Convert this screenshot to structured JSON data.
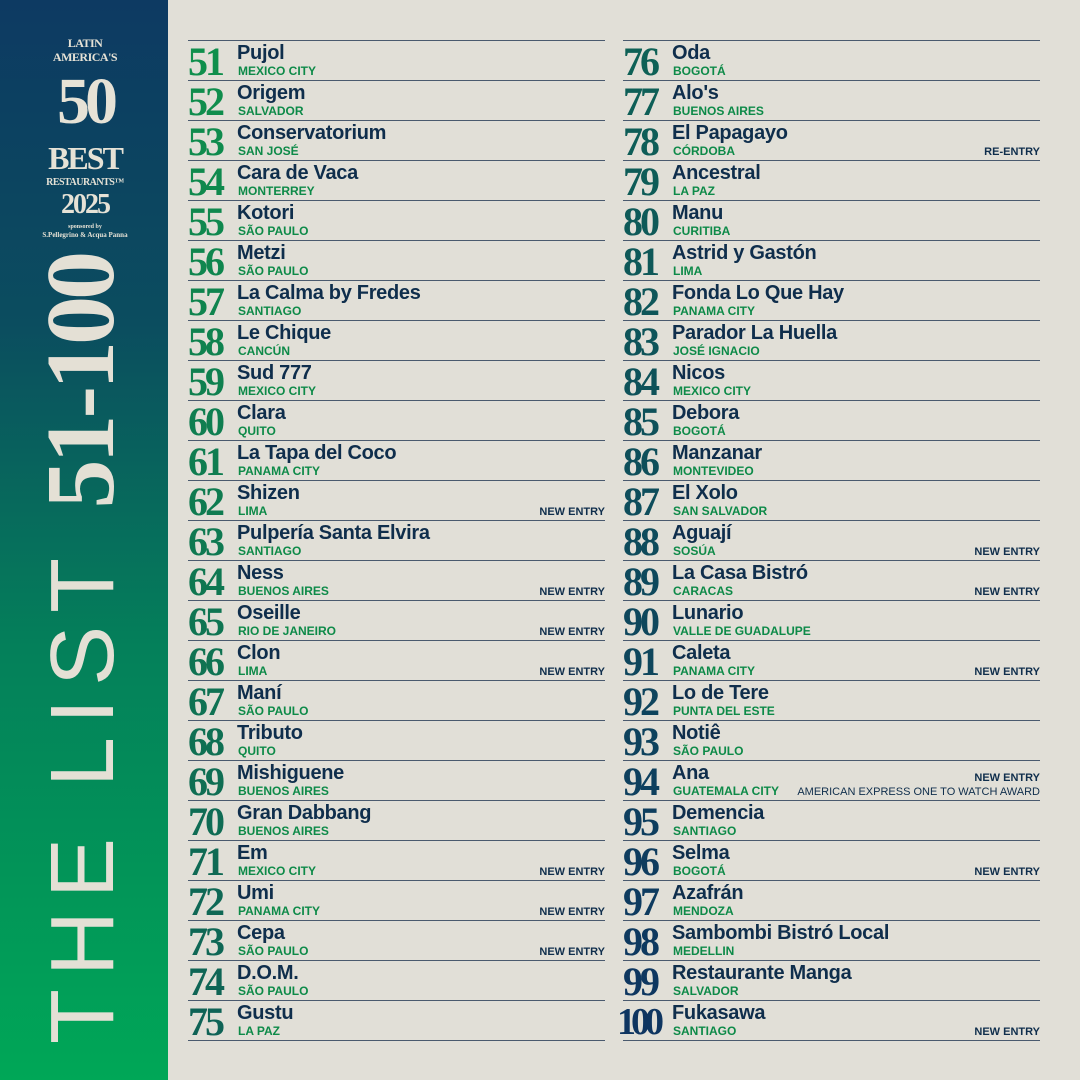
{
  "brand": {
    "line1": "LATIN",
    "line2": "AMERICA'S",
    "number": "50",
    "best": "BEST",
    "restaurants": "RESTAURANTS™",
    "year": "2025",
    "sponsored": "sponsored by",
    "sponsor": "S.Pellegrino & Acqua Panna"
  },
  "heading": {
    "part1": "THE LIST ",
    "part2": "51-100"
  },
  "colors": {
    "number_start": "#0f8f4c",
    "number_end": "#0e3560",
    "name": "#0f2e4c",
    "city": "#0d8a48",
    "background": "#e1dfd7"
  },
  "entries": [
    {
      "rank": "51",
      "name": "Pujol",
      "city": "MEXICO CITY"
    },
    {
      "rank": "52",
      "name": "Origem",
      "city": "SALVADOR"
    },
    {
      "rank": "53",
      "name": "Conservatorium",
      "city": "SAN JOSÉ"
    },
    {
      "rank": "54",
      "name": "Cara de Vaca",
      "city": "MONTERREY"
    },
    {
      "rank": "55",
      "name": "Kotori",
      "city": "SÃO PAULO"
    },
    {
      "rank": "56",
      "name": "Metzi",
      "city": "SÃO PAULO"
    },
    {
      "rank": "57",
      "name": "La Calma by Fredes",
      "city": "SANTIAGO"
    },
    {
      "rank": "58",
      "name": "Le Chique",
      "city": "CANCÚN"
    },
    {
      "rank": "59",
      "name": "Sud 777",
      "city": "MEXICO CITY"
    },
    {
      "rank": "60",
      "name": "Clara",
      "city": "QUITO"
    },
    {
      "rank": "61",
      "name": "La Tapa del Coco",
      "city": "PANAMA CITY"
    },
    {
      "rank": "62",
      "name": "Shizen",
      "city": "LIMA",
      "tag": "NEW ENTRY"
    },
    {
      "rank": "63",
      "name": "Pulpería Santa Elvira",
      "city": "SANTIAGO"
    },
    {
      "rank": "64",
      "name": "Ness",
      "city": "BUENOS AIRES",
      "tag": "NEW ENTRY"
    },
    {
      "rank": "65",
      "name": "Oseille",
      "city": "RIO DE JANEIRO",
      "tag": "NEW ENTRY"
    },
    {
      "rank": "66",
      "name": "Clon",
      "city": "LIMA",
      "tag": "NEW ENTRY"
    },
    {
      "rank": "67",
      "name": "Maní",
      "city": "SÃO PAULO"
    },
    {
      "rank": "68",
      "name": "Tributo",
      "city": "QUITO"
    },
    {
      "rank": "69",
      "name": "Mishiguene",
      "city": "BUENOS AIRES"
    },
    {
      "rank": "70",
      "name": "Gran Dabbang",
      "city": "BUENOS AIRES"
    },
    {
      "rank": "71",
      "name": "Em",
      "city": "MEXICO CITY",
      "tag": "NEW ENTRY"
    },
    {
      "rank": "72",
      "name": "Umi",
      "city": "PANAMA CITY",
      "tag": "NEW ENTRY"
    },
    {
      "rank": "73",
      "name": "Cepa",
      "city": "SÃO PAULO",
      "tag": "NEW ENTRY"
    },
    {
      "rank": "74",
      "name": "D.O.M.",
      "city": "SÃO PAULO"
    },
    {
      "rank": "75",
      "name": "Gustu",
      "city": "LA PAZ"
    },
    {
      "rank": "76",
      "name": "Oda",
      "city": "BOGOTÁ"
    },
    {
      "rank": "77",
      "name": "Alo's",
      "city": "BUENOS AIRES"
    },
    {
      "rank": "78",
      "name": "El Papagayo",
      "city": "CÓRDOBA",
      "tag": "RE-ENTRY"
    },
    {
      "rank": "79",
      "name": "Ancestral",
      "city": "LA PAZ"
    },
    {
      "rank": "80",
      "name": "Manu",
      "city": "CURITIBA"
    },
    {
      "rank": "81",
      "name": "Astrid y Gastón",
      "city": "LIMA"
    },
    {
      "rank": "82",
      "name": "Fonda Lo Que Hay",
      "city": "PANAMA CITY"
    },
    {
      "rank": "83",
      "name": "Parador La Huella",
      "city": "JOSÉ IGNACIO"
    },
    {
      "rank": "84",
      "name": "Nicos",
      "city": "MEXICO CITY"
    },
    {
      "rank": "85",
      "name": "Debora",
      "city": "BOGOTÁ"
    },
    {
      "rank": "86",
      "name": "Manzanar",
      "city": "MONTEVIDEO"
    },
    {
      "rank": "87",
      "name": "El Xolo",
      "city": "SAN SALVADOR"
    },
    {
      "rank": "88",
      "name": "Aguají",
      "city": "SOSÚA",
      "tag": "NEW ENTRY"
    },
    {
      "rank": "89",
      "name": "La Casa Bistró",
      "city": "CARACAS",
      "tag": "NEW ENTRY"
    },
    {
      "rank": "90",
      "name": "Lunario",
      "city": "VALLE DE GUADALUPE"
    },
    {
      "rank": "91",
      "name": "Caleta",
      "city": "PANAMA CITY",
      "tag": "NEW ENTRY"
    },
    {
      "rank": "92",
      "name": "Lo de Tere",
      "city": "PUNTA DEL ESTE"
    },
    {
      "rank": "93",
      "name": "Notiê",
      "city": "SÃO PAULO"
    },
    {
      "rank": "94",
      "name": "Ana",
      "city": "GUATEMALA CITY",
      "tag_top": "NEW ENTRY",
      "award": "AMERICAN EXPRESS ONE TO WATCH AWARD"
    },
    {
      "rank": "95",
      "name": "Demencia",
      "city": "SANTIAGO"
    },
    {
      "rank": "96",
      "name": "Selma",
      "city": "BOGOTÁ",
      "tag": "NEW ENTRY"
    },
    {
      "rank": "97",
      "name": "Azafrán",
      "city": "MENDOZA"
    },
    {
      "rank": "98",
      "name": "Sambombi Bistró Local",
      "city": "MEDELLIN"
    },
    {
      "rank": "99",
      "name": "Restaurante Manga",
      "city": "SALVADOR"
    },
    {
      "rank": "100",
      "name": "Fukasawa",
      "city": "SANTIAGO",
      "tag": "NEW ENTRY"
    }
  ]
}
